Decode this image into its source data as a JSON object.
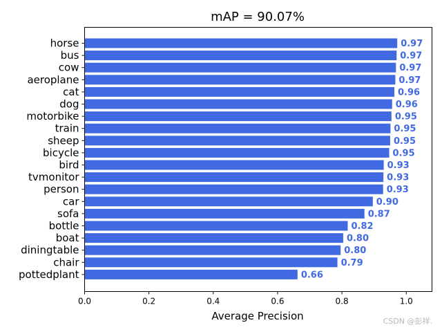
{
  "chart_data": {
    "type": "bar",
    "orientation": "horizontal",
    "title": "mAP = 90.07%",
    "xlabel": "Average Precision",
    "ylabel": "",
    "xlim": [
      0,
      1.08
    ],
    "xticks": [
      "0.0",
      "0.2",
      "0.4",
      "0.6",
      "0.8",
      "1.0"
    ],
    "bar_color": "#4169e1",
    "label_color": "#4169e1",
    "categories": [
      "horse",
      "bus",
      "cow",
      "aeroplane",
      "cat",
      "dog",
      "motorbike",
      "train",
      "sheep",
      "bicycle",
      "bird",
      "tvmonitor",
      "person",
      "car",
      "sofa",
      "bottle",
      "boat",
      "diningtable",
      "chair",
      "pottedplant"
    ],
    "values": [
      0.972,
      0.97,
      0.968,
      0.966,
      0.963,
      0.956,
      0.954,
      0.951,
      0.95,
      0.947,
      0.93,
      0.929,
      0.928,
      0.896,
      0.87,
      0.818,
      0.804,
      0.796,
      0.786,
      0.662
    ],
    "data_labels": [
      "0.97",
      "0.97",
      "0.97",
      "0.97",
      "0.96",
      "0.96",
      "0.95",
      "0.95",
      "0.95",
      "0.95",
      "0.93",
      "0.93",
      "0.93",
      "0.90",
      "0.87",
      "0.82",
      "0.80",
      "0.80",
      "0.79",
      "0.66"
    ]
  },
  "watermark": "CSDN @彭祥."
}
